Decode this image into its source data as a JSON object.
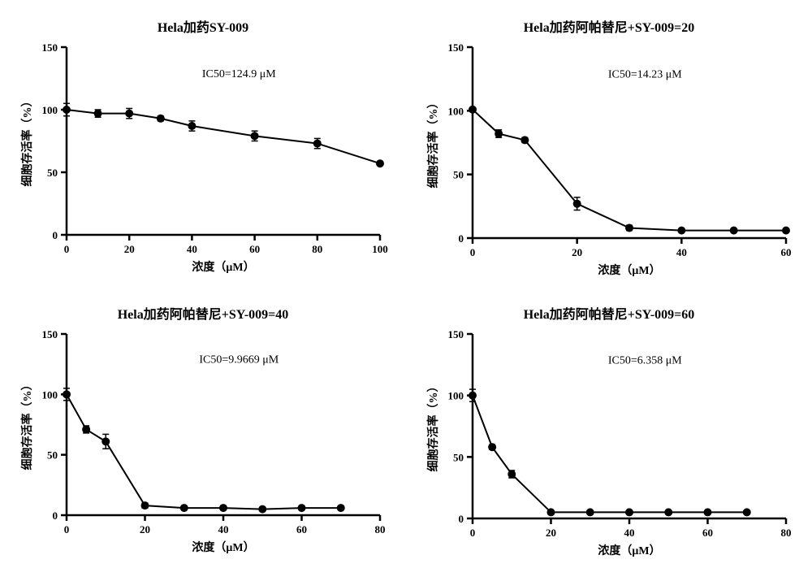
{
  "global": {
    "marker_color": "#000000",
    "line_color": "#000000",
    "axis_color": "#000000",
    "background_color": "#ffffff",
    "line_width": 2,
    "marker_radius": 4.5,
    "axis_width": 2.5,
    "title_fontsize": 16,
    "label_fontsize": 14,
    "tick_fontsize": 13,
    "annotation_fontsize": 14,
    "font_family": "Times New Roman",
    "ylabel": "细胞存活率（%）",
    "xlabel": "浓度（μM）"
  },
  "panels": [
    {
      "id": "p1",
      "title": "Hela加药SY-009",
      "annotation": "IC50=124.9 μM",
      "type": "line",
      "xlim": [
        0,
        100
      ],
      "xtick_step": 20,
      "ylim": [
        0,
        150
      ],
      "ytick_step": 50,
      "x": [
        0,
        10,
        20,
        30,
        40,
        60,
        80,
        100
      ],
      "y": [
        100,
        97,
        97,
        93,
        87,
        79,
        73,
        57
      ],
      "err": [
        5,
        3,
        4,
        2,
        4,
        4,
        4,
        1
      ]
    },
    {
      "id": "p2",
      "title": "Hela加药阿帕替尼+SY-009=20",
      "annotation": "IC50=14.23 μM",
      "type": "line",
      "xlim": [
        0,
        60
      ],
      "xtick_step": 20,
      "ylim": [
        0,
        150
      ],
      "ytick_step": 50,
      "x": [
        0,
        5,
        10,
        20,
        30,
        40,
        50,
        60
      ],
      "y": [
        101,
        82,
        77,
        27,
        8,
        6,
        6,
        6
      ],
      "err": [
        1,
        3,
        2,
        5,
        2,
        1,
        1,
        1
      ]
    },
    {
      "id": "p3",
      "title": "Hela加药阿帕替尼+SY-009=40",
      "annotation": "IC50=9.9669 μM",
      "type": "line",
      "xlim": [
        0,
        80
      ],
      "xtick_step": 20,
      "ylim": [
        0,
        150
      ],
      "ytick_step": 50,
      "x": [
        0,
        5,
        10,
        20,
        30,
        40,
        50,
        60,
        70
      ],
      "y": [
        100,
        71,
        61,
        8,
        6,
        6,
        5,
        6,
        6
      ],
      "err": [
        5,
        3,
        6,
        2,
        1,
        1,
        1,
        1,
        1
      ]
    },
    {
      "id": "p4",
      "title": "Hela加药阿帕替尼+SY-009=60",
      "annotation": "IC50=6.358 μM",
      "type": "line",
      "xlim": [
        0,
        80
      ],
      "xtick_step": 20,
      "ylim": [
        0,
        150
      ],
      "ytick_step": 50,
      "x": [
        0,
        5,
        10,
        20,
        30,
        40,
        50,
        60,
        70
      ],
      "y": [
        100,
        58,
        36,
        5,
        5,
        5,
        5,
        5,
        5
      ],
      "err": [
        5,
        2,
        3,
        1,
        1,
        1,
        1,
        1,
        1
      ]
    }
  ]
}
